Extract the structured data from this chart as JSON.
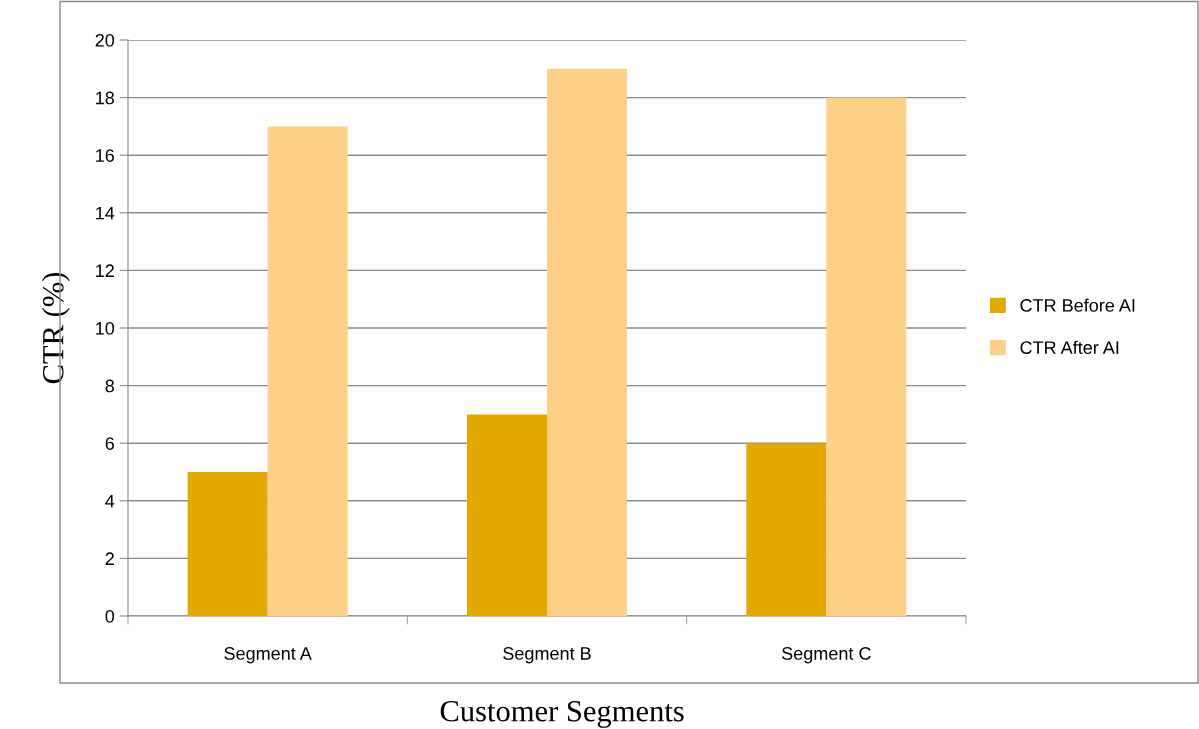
{
  "chart_data": {
    "type": "bar",
    "xlabel": "Customer Segments",
    "ylabel": "CTR (%)",
    "categories": [
      "Segment A",
      "Segment B",
      "Segment C"
    ],
    "series": [
      {
        "name": "CTR Before AI",
        "color": "#e3a900",
        "values": [
          5,
          7,
          6
        ]
      },
      {
        "name": "CTR After AI",
        "color": "#fdd088",
        "values": [
          17,
          19,
          18
        ]
      }
    ],
    "ylim": [
      0,
      20
    ],
    "yticks": [
      0,
      2,
      4,
      6,
      8,
      10,
      12,
      14,
      16,
      18,
      20
    ],
    "grid": "y",
    "legend": "right"
  }
}
